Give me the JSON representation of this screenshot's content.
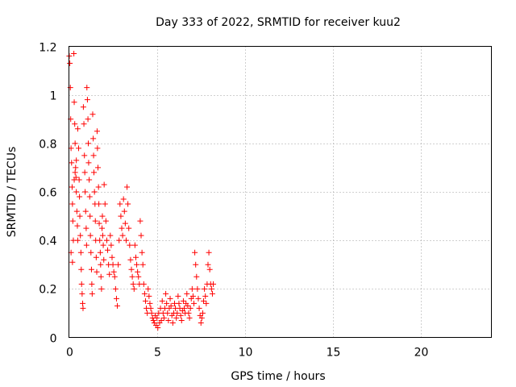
{
  "chart_data": {
    "type": "scatter",
    "title": "Day 333 of 2022, SRMTID for receiver kuu2",
    "xlabel": "GPS time / hours",
    "ylabel": "SRMTID / TECUs",
    "xlim": [
      0,
      24
    ],
    "ylim": [
      0,
      1.2
    ],
    "xticks": [
      0,
      5,
      10,
      15,
      20
    ],
    "xtick_labels": [
      "0",
      "5",
      "10",
      "15",
      "20"
    ],
    "yticks": [
      0,
      0.2,
      0.4,
      0.6,
      0.8,
      1.0,
      1.2
    ],
    "ytick_labels": [
      "0",
      "0.2",
      "0.4",
      "0.6",
      "0.8",
      "1",
      "1.2"
    ],
    "grid": true,
    "marker": "+",
    "color": "#ff0000",
    "series": [
      {
        "name": "SRMTID",
        "points": [
          [
            0.02,
            1.16
          ],
          [
            0.05,
            1.13
          ],
          [
            0.08,
            1.03
          ],
          [
            0.1,
            0.9
          ],
          [
            0.12,
            0.78
          ],
          [
            0.15,
            0.72
          ],
          [
            0.18,
            0.62
          ],
          [
            0.2,
            0.55
          ],
          [
            0.22,
            0.48
          ],
          [
            0.25,
            0.4
          ],
          [
            0.28,
            1.17
          ],
          [
            0.3,
            0.97
          ],
          [
            0.33,
            0.88
          ],
          [
            0.35,
            0.8
          ],
          [
            0.38,
            0.7
          ],
          [
            0.4,
            0.66
          ],
          [
            0.42,
            0.6
          ],
          [
            0.45,
            0.52
          ],
          [
            0.48,
            0.46
          ],
          [
            0.5,
            0.4
          ],
          [
            0.12,
            0.35
          ],
          [
            0.2,
            0.31
          ],
          [
            0.3,
            0.65
          ],
          [
            0.35,
            0.68
          ],
          [
            0.42,
            0.73
          ],
          [
            0.5,
            0.86
          ],
          [
            0.55,
            0.78
          ],
          [
            0.58,
            0.65
          ],
          [
            0.6,
            0.58
          ],
          [
            0.62,
            0.5
          ],
          [
            0.65,
            0.42
          ],
          [
            0.68,
            0.35
          ],
          [
            0.7,
            0.28
          ],
          [
            0.72,
            0.22
          ],
          [
            0.75,
            0.18
          ],
          [
            0.78,
            0.14
          ],
          [
            0.8,
            0.12
          ],
          [
            0.82,
            0.95
          ],
          [
            0.85,
            0.88
          ],
          [
            0.88,
            0.75
          ],
          [
            0.9,
            0.68
          ],
          [
            0.92,
            0.6
          ],
          [
            0.95,
            0.52
          ],
          [
            0.98,
            0.45
          ],
          [
            1.0,
            0.38
          ],
          [
            1.02,
            1.03
          ],
          [
            1.05,
            0.98
          ],
          [
            1.08,
            0.9
          ],
          [
            1.1,
            0.8
          ],
          [
            1.12,
            0.72
          ],
          [
            1.15,
            0.65
          ],
          [
            1.18,
            0.58
          ],
          [
            1.2,
            0.5
          ],
          [
            1.22,
            0.42
          ],
          [
            1.25,
            0.35
          ],
          [
            1.28,
            0.28
          ],
          [
            1.3,
            0.22
          ],
          [
            1.32,
            0.18
          ],
          [
            1.35,
            0.92
          ],
          [
            1.38,
            0.82
          ],
          [
            1.4,
            0.75
          ],
          [
            1.42,
            0.68
          ],
          [
            1.45,
            0.6
          ],
          [
            1.48,
            0.55
          ],
          [
            1.5,
            0.48
          ],
          [
            1.52,
            0.4
          ],
          [
            1.55,
            0.33
          ],
          [
            1.58,
            0.27
          ],
          [
            1.6,
            0.85
          ],
          [
            1.62,
            0.78
          ],
          [
            1.65,
            0.7
          ],
          [
            1.68,
            0.62
          ],
          [
            1.7,
            0.55
          ],
          [
            1.72,
            0.47
          ],
          [
            1.75,
            0.4
          ],
          [
            1.78,
            0.35
          ],
          [
            1.8,
            0.3
          ],
          [
            1.82,
            0.25
          ],
          [
            1.85,
            0.2
          ],
          [
            1.88,
            0.45
          ],
          [
            1.9,
            0.5
          ],
          [
            1.92,
            0.42
          ],
          [
            1.95,
            0.38
          ],
          [
            1.98,
            0.32
          ],
          [
            2.0,
            0.63
          ],
          [
            2.05,
            0.55
          ],
          [
            2.1,
            0.48
          ],
          [
            2.15,
            0.4
          ],
          [
            2.2,
            0.36
          ],
          [
            2.25,
            0.3
          ],
          [
            2.3,
            0.26
          ],
          [
            2.35,
            0.42
          ],
          [
            2.4,
            0.38
          ],
          [
            2.45,
            0.33
          ],
          [
            2.5,
            0.3
          ],
          [
            2.55,
            0.27
          ],
          [
            2.6,
            0.25
          ],
          [
            2.65,
            0.2
          ],
          [
            2.7,
            0.16
          ],
          [
            2.75,
            0.13
          ],
          [
            2.8,
            0.3
          ],
          [
            2.85,
            0.4
          ],
          [
            2.9,
            0.55
          ],
          [
            2.95,
            0.5
          ],
          [
            3.0,
            0.45
          ],
          [
            3.05,
            0.42
          ],
          [
            3.1,
            0.57
          ],
          [
            3.15,
            0.52
          ],
          [
            3.2,
            0.47
          ],
          [
            3.25,
            0.4
          ],
          [
            3.3,
            0.62
          ],
          [
            3.35,
            0.55
          ],
          [
            3.4,
            0.45
          ],
          [
            3.45,
            0.38
          ],
          [
            3.5,
            0.32
          ],
          [
            3.55,
            0.28
          ],
          [
            3.6,
            0.25
          ],
          [
            3.65,
            0.22
          ],
          [
            3.7,
            0.2
          ],
          [
            3.75,
            0.38
          ],
          [
            3.8,
            0.33
          ],
          [
            3.85,
            0.3
          ],
          [
            3.9,
            0.27
          ],
          [
            3.95,
            0.25
          ],
          [
            4.0,
            0.22
          ],
          [
            4.05,
            0.48
          ],
          [
            4.1,
            0.42
          ],
          [
            4.15,
            0.35
          ],
          [
            4.2,
            0.3
          ],
          [
            4.25,
            0.22
          ],
          [
            4.3,
            0.18
          ],
          [
            4.35,
            0.15
          ],
          [
            4.4,
            0.12
          ],
          [
            4.45,
            0.1
          ],
          [
            4.5,
            0.2
          ],
          [
            4.55,
            0.17
          ],
          [
            4.6,
            0.14
          ],
          [
            4.65,
            0.12
          ],
          [
            4.7,
            0.1
          ],
          [
            4.75,
            0.08
          ],
          [
            4.8,
            0.07
          ],
          [
            4.85,
            0.06
          ],
          [
            4.9,
            0.09
          ],
          [
            4.95,
            0.05
          ],
          [
            5.0,
            0.08
          ],
          [
            5.05,
            0.04
          ],
          [
            5.1,
            0.1
          ],
          [
            5.15,
            0.06
          ],
          [
            5.2,
            0.12
          ],
          [
            5.25,
            0.07
          ],
          [
            5.3,
            0.15
          ],
          [
            5.35,
            0.1
          ],
          [
            5.4,
            0.08
          ],
          [
            5.45,
            0.12
          ],
          [
            5.5,
            0.18
          ],
          [
            5.55,
            0.14
          ],
          [
            5.6,
            0.1
          ],
          [
            5.65,
            0.07
          ],
          [
            5.7,
            0.12
          ],
          [
            5.75,
            0.16
          ],
          [
            5.8,
            0.13
          ],
          [
            5.85,
            0.09
          ],
          [
            5.9,
            0.06
          ],
          [
            5.95,
            0.1
          ],
          [
            6.0,
            0.14
          ],
          [
            6.05,
            0.12
          ],
          [
            6.1,
            0.08
          ],
          [
            6.15,
            0.1
          ],
          [
            6.2,
            0.17
          ],
          [
            6.25,
            0.14
          ],
          [
            6.3,
            0.12
          ],
          [
            6.35,
            0.09
          ],
          [
            6.4,
            0.07
          ],
          [
            6.45,
            0.11
          ],
          [
            6.5,
            0.15
          ],
          [
            6.55,
            0.12
          ],
          [
            6.6,
            0.1
          ],
          [
            6.65,
            0.14
          ],
          [
            6.7,
            0.18
          ],
          [
            6.75,
            0.13
          ],
          [
            6.8,
            0.1
          ],
          [
            6.85,
            0.08
          ],
          [
            6.9,
            0.12
          ],
          [
            6.95,
            0.16
          ],
          [
            7.0,
            0.2
          ],
          [
            7.05,
            0.17
          ],
          [
            7.1,
            0.14
          ],
          [
            7.15,
            0.35
          ],
          [
            7.2,
            0.3
          ],
          [
            7.25,
            0.25
          ],
          [
            7.3,
            0.2
          ],
          [
            7.35,
            0.16
          ],
          [
            7.4,
            0.12
          ],
          [
            7.45,
            0.09
          ],
          [
            7.5,
            0.06
          ],
          [
            7.55,
            0.08
          ],
          [
            7.6,
            0.1
          ],
          [
            7.65,
            0.15
          ],
          [
            7.7,
            0.2
          ],
          [
            7.75,
            0.17
          ],
          [
            7.8,
            0.14
          ],
          [
            7.85,
            0.22
          ],
          [
            7.9,
            0.3
          ],
          [
            7.95,
            0.35
          ],
          [
            8.0,
            0.28
          ],
          [
            8.05,
            0.22
          ],
          [
            8.1,
            0.2
          ],
          [
            8.15,
            0.18
          ],
          [
            8.2,
            0.22
          ]
        ]
      }
    ]
  }
}
